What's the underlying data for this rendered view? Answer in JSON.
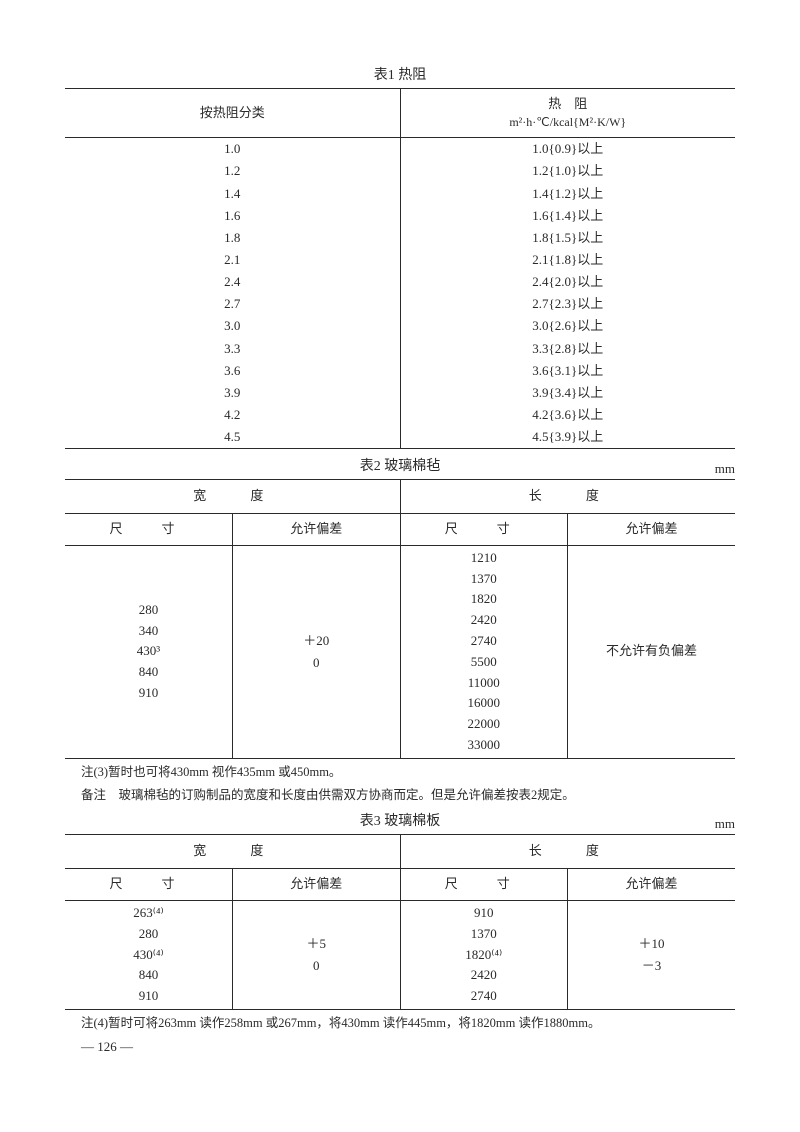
{
  "table1": {
    "title": "表1  热阻",
    "header_left": "按热阻分类",
    "header_right_line1": "热　阻",
    "header_right_line2": "m²·h·℃/kcal{M²·K/W}",
    "rows": [
      {
        "a": "1.0",
        "b": "1.0{0.9}以上"
      },
      {
        "a": "1.2",
        "b": "1.2{1.0}以上"
      },
      {
        "a": "1.4",
        "b": "1.4{1.2}以上"
      },
      {
        "a": "1.6",
        "b": "1.6{1.4}以上"
      },
      {
        "a": "1.8",
        "b": "1.8{1.5}以上"
      },
      {
        "a": "2.1",
        "b": "2.1{1.8}以上"
      },
      {
        "a": "2.4",
        "b": "2.4{2.0}以上"
      },
      {
        "a": "2.7",
        "b": "2.7{2.3}以上"
      },
      {
        "a": "3.0",
        "b": "3.0{2.6}以上"
      },
      {
        "a": "3.3",
        "b": "3.3{2.8}以上"
      },
      {
        "a": "3.6",
        "b": "3.6{3.1}以上"
      },
      {
        "a": "3.9",
        "b": "3.9{3.4}以上"
      },
      {
        "a": "4.2",
        "b": "4.2{3.6}以上"
      },
      {
        "a": "4.5",
        "b": "4.5{3.9}以上"
      }
    ]
  },
  "table2": {
    "title": "表2  玻璃棉毡",
    "unit": "mm",
    "group_headers": [
      "宽　度",
      "长　度"
    ],
    "sub_headers": [
      "尺　寸",
      "允许偏差",
      "尺　寸",
      "允许偏差"
    ],
    "width_sizes": [
      "280",
      "340",
      "430³",
      "840",
      "910"
    ],
    "width_tol1": "＋20",
    "width_tol2": "0",
    "len_sizes": [
      "1210",
      "1370",
      "1820",
      "2420",
      "2740",
      "5500",
      "11000",
      "16000",
      "22000",
      "33000"
    ],
    "len_tol": "不允许有负偏差",
    "note1": "注(3)暂时也可将430mm 视作435mm 或450mm。",
    "note2": "备注　玻璃棉毡的订购制品的宽度和长度由供需双方协商而定。但是允许偏差按表2规定。"
  },
  "table3": {
    "title": "表3  玻璃棉板",
    "unit": "mm",
    "group_headers": [
      "宽　度",
      "长　度"
    ],
    "sub_headers": [
      "尺　寸",
      "允许偏差",
      "尺　寸",
      "允许偏差"
    ],
    "width_sizes": [
      "263⁽⁴⁾",
      "280",
      "430⁽⁴⁾",
      "840",
      "910"
    ],
    "width_tol1": "＋5",
    "width_tol2": "0",
    "len_sizes": [
      "910",
      "1370",
      "1820⁽⁴⁾",
      "2420",
      "2740"
    ],
    "len_tol1": "＋10",
    "len_tol2": "－3",
    "note": "注(4)暂时可将263mm 读作258mm 或267mm，将430mm 读作445mm，将1820mm 读作1880mm。"
  },
  "pagenum": "— 126 —"
}
